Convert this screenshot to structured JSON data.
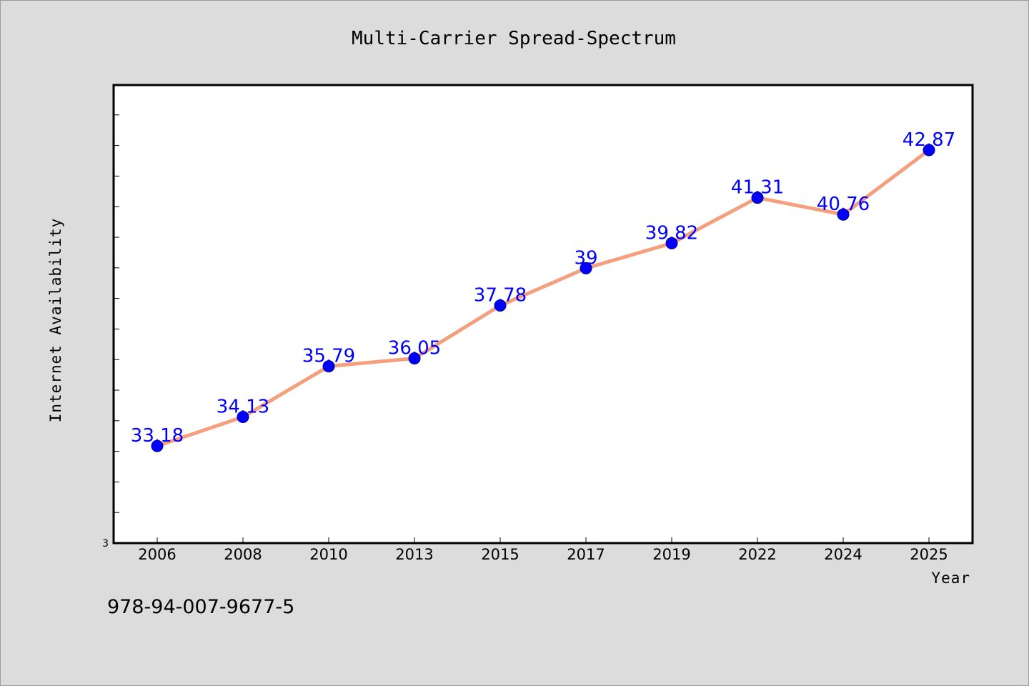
{
  "chart_data": {
    "type": "line",
    "title": "Multi-Carrier Spread-Spectrum",
    "xlabel": "Year",
    "ylabel": "Internet Availability",
    "categories": [
      "2006",
      "2008",
      "2010",
      "2013",
      "2015",
      "2017",
      "2019",
      "2022",
      "2024",
      "2025"
    ],
    "series": [
      {
        "values": [
          33.18,
          34.13,
          35.79,
          36.05,
          37.78,
          39,
          39.82,
          41.31,
          40.76,
          42.87
        ]
      }
    ],
    "data_labels": [
      "33.18",
      "34.13",
      "35.79",
      "36.05",
      "37.78",
      "39",
      "39.82",
      "41.31",
      "40.76",
      "42.87"
    ],
    "y_tick_labels": [
      "3"
    ],
    "ylim": [
      30,
      45
    ],
    "grid": false,
    "colors": {
      "line": "#f4a07e",
      "marker": "#0000ff",
      "label": "#0000ff",
      "plot_bg": "#ffffff",
      "page_bg": "#dcdcdc"
    }
  },
  "footer": {
    "code": "978-94-007-9677-5"
  }
}
